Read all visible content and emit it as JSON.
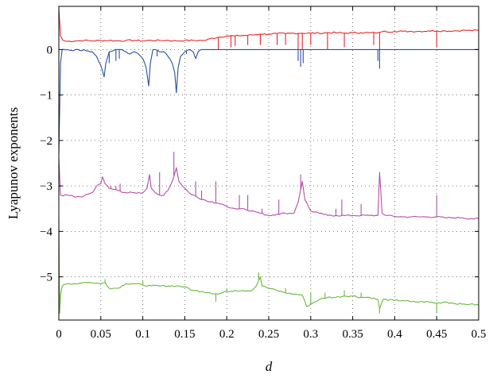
{
  "chart_data": {
    "type": "line",
    "title": "",
    "xlabel": "d",
    "ylabel": "Lyapunov exponents",
    "xlim": [
      0,
      0.5
    ],
    "ylim": [
      -5.95,
      0.95
    ],
    "grid": "dotted",
    "x_ticks": [
      0,
      0.05,
      0.1,
      0.15,
      0.2,
      0.25,
      0.3,
      0.35,
      0.4,
      0.45,
      0.5
    ],
    "x_tick_labels": [
      "0",
      "0.05",
      "0.1",
      "0.15",
      "0.2",
      "0.25",
      "0.3",
      "0.35",
      "0.4",
      "0.45",
      "0.5"
    ],
    "y_ticks": [
      -5,
      -4,
      -3,
      -2,
      -1,
      0
    ],
    "y_tick_labels": [
      "−5",
      "−4",
      "−3",
      "−2",
      "−1",
      "0"
    ],
    "series": [
      {
        "color": "#e8262a",
        "points": [
          [
            0,
            0.9
          ],
          [
            0.002,
            0.3
          ],
          [
            0.005,
            0.2
          ],
          [
            0.01,
            0.18
          ],
          [
            0.02,
            0.19
          ],
          [
            0.03,
            0.2
          ],
          [
            0.04,
            0.19
          ],
          [
            0.05,
            0.2
          ],
          [
            0.06,
            0.2
          ],
          [
            0.07,
            0.19
          ],
          [
            0.08,
            0.2
          ],
          [
            0.09,
            0.2
          ],
          [
            0.1,
            0.19
          ],
          [
            0.11,
            0.2
          ],
          [
            0.12,
            0.2
          ],
          [
            0.13,
            0.2
          ],
          [
            0.14,
            0.19
          ],
          [
            0.15,
            0.2
          ],
          [
            0.16,
            0.2
          ],
          [
            0.17,
            0.2
          ],
          [
            0.175,
            0.2
          ],
          [
            0.18,
            0.24
          ],
          [
            0.19,
            0.27
          ],
          [
            0.2,
            0.3
          ],
          [
            0.21,
            0.3
          ],
          [
            0.22,
            0.31
          ],
          [
            0.23,
            0.32
          ],
          [
            0.24,
            0.34
          ],
          [
            0.25,
            0.34
          ],
          [
            0.26,
            0.35
          ],
          [
            0.27,
            0.35
          ],
          [
            0.28,
            0.36
          ],
          [
            0.29,
            0.36
          ],
          [
            0.3,
            0.36
          ],
          [
            0.31,
            0.36
          ],
          [
            0.32,
            0.37
          ],
          [
            0.33,
            0.37
          ],
          [
            0.34,
            0.36
          ],
          [
            0.35,
            0.37
          ],
          [
            0.36,
            0.37
          ],
          [
            0.37,
            0.37
          ],
          [
            0.38,
            0.37
          ],
          [
            0.383,
            0.38
          ],
          [
            0.386,
            0.4
          ],
          [
            0.39,
            0.39
          ],
          [
            0.4,
            0.4
          ],
          [
            0.41,
            0.4
          ],
          [
            0.42,
            0.4
          ],
          [
            0.43,
            0.4
          ],
          [
            0.44,
            0.41
          ],
          [
            0.45,
            0.41
          ],
          [
            0.46,
            0.41
          ],
          [
            0.47,
            0.41
          ],
          [
            0.48,
            0.42
          ],
          [
            0.49,
            0.42
          ],
          [
            0.5,
            0.42
          ]
        ],
        "dips": [
          [
            0.19,
            0.0
          ],
          [
            0.205,
            0.05
          ],
          [
            0.21,
            0.08
          ],
          [
            0.225,
            0.1
          ],
          [
            0.24,
            0.1
          ],
          [
            0.26,
            0.1
          ],
          [
            0.27,
            0.1
          ],
          [
            0.285,
            0.0
          ],
          [
            0.29,
            0.0
          ],
          [
            0.3,
            0.1
          ],
          [
            0.32,
            0.0
          ],
          [
            0.34,
            0.05
          ],
          [
            0.375,
            0.1
          ],
          [
            0.382,
            0.0
          ],
          [
            0.45,
            0.05
          ]
        ]
      },
      {
        "color": "#2b4fa3",
        "points": [
          [
            0,
            -2.3
          ],
          [
            0.002,
            -0.3
          ],
          [
            0.004,
            0.0
          ],
          [
            0.01,
            0.0
          ],
          [
            0.015,
            -0.02
          ],
          [
            0.02,
            0.0
          ],
          [
            0.025,
            -0.02
          ],
          [
            0.03,
            0.0
          ],
          [
            0.035,
            -0.03
          ],
          [
            0.04,
            -0.05
          ],
          [
            0.045,
            -0.15
          ],
          [
            0.05,
            -0.35
          ],
          [
            0.054,
            -0.6
          ],
          [
            0.056,
            -0.3
          ],
          [
            0.06,
            -0.05
          ],
          [
            0.07,
            0.0
          ],
          [
            0.075,
            0.0
          ],
          [
            0.08,
            -0.05
          ],
          [
            0.085,
            -0.1
          ],
          [
            0.09,
            -0.05
          ],
          [
            0.095,
            -0.1
          ],
          [
            0.1,
            -0.2
          ],
          [
            0.104,
            -0.4
          ],
          [
            0.107,
            -0.8
          ],
          [
            0.109,
            -0.3
          ],
          [
            0.112,
            0.0
          ],
          [
            0.115,
            0.0
          ],
          [
            0.12,
            -0.05
          ],
          [
            0.125,
            -0.05
          ],
          [
            0.13,
            -0.15
          ],
          [
            0.135,
            -0.3
          ],
          [
            0.138,
            -0.5
          ],
          [
            0.14,
            -0.95
          ],
          [
            0.142,
            -0.4
          ],
          [
            0.145,
            -0.15
          ],
          [
            0.15,
            -0.05
          ],
          [
            0.155,
            0.0
          ],
          [
            0.16,
            -0.05
          ],
          [
            0.163,
            -0.2
          ],
          [
            0.166,
            -0.05
          ],
          [
            0.17,
            0.0
          ],
          [
            0.5,
            0.0
          ]
        ],
        "dips": [
          [
            0.06,
            -0.3
          ],
          [
            0.068,
            -0.25
          ],
          [
            0.072,
            -0.2
          ],
          [
            0.117,
            -0.15
          ],
          [
            0.152,
            -0.1
          ],
          [
            0.285,
            -0.25
          ],
          [
            0.288,
            -0.38
          ],
          [
            0.291,
            -0.3
          ],
          [
            0.38,
            -0.25
          ],
          [
            0.382,
            -0.42
          ]
        ]
      },
      {
        "color": "#b44fa9",
        "points": [
          [
            0,
            -2.4
          ],
          [
            0.002,
            -3.2
          ],
          [
            0.005,
            -3.22
          ],
          [
            0.01,
            -3.2
          ],
          [
            0.02,
            -3.25
          ],
          [
            0.03,
            -3.22
          ],
          [
            0.04,
            -3.15
          ],
          [
            0.045,
            -3.0
          ],
          [
            0.05,
            -2.95
          ],
          [
            0.052,
            -2.8
          ],
          [
            0.055,
            -2.95
          ],
          [
            0.06,
            -3.05
          ],
          [
            0.07,
            -3.1
          ],
          [
            0.08,
            -3.15
          ],
          [
            0.09,
            -3.15
          ],
          [
            0.1,
            -3.15
          ],
          [
            0.105,
            -3.05
          ],
          [
            0.108,
            -2.75
          ],
          [
            0.11,
            -3.05
          ],
          [
            0.115,
            -3.15
          ],
          [
            0.12,
            -3.2
          ],
          [
            0.125,
            -3.2
          ],
          [
            0.13,
            -3.1
          ],
          [
            0.135,
            -2.9
          ],
          [
            0.14,
            -2.6
          ],
          [
            0.143,
            -2.9
          ],
          [
            0.15,
            -3.05
          ],
          [
            0.155,
            -3.15
          ],
          [
            0.16,
            -3.2
          ],
          [
            0.165,
            -3.25
          ],
          [
            0.17,
            -3.3
          ],
          [
            0.18,
            -3.35
          ],
          [
            0.19,
            -3.38
          ],
          [
            0.2,
            -3.45
          ],
          [
            0.21,
            -3.5
          ],
          [
            0.22,
            -3.5
          ],
          [
            0.23,
            -3.55
          ],
          [
            0.24,
            -3.6
          ],
          [
            0.25,
            -3.65
          ],
          [
            0.26,
            -3.62
          ],
          [
            0.27,
            -3.6
          ],
          [
            0.28,
            -3.6
          ],
          [
            0.285,
            -3.35
          ],
          [
            0.29,
            -2.9
          ],
          [
            0.293,
            -3.3
          ],
          [
            0.3,
            -3.55
          ],
          [
            0.31,
            -3.6
          ],
          [
            0.32,
            -3.65
          ],
          [
            0.33,
            -3.65
          ],
          [
            0.34,
            -3.65
          ],
          [
            0.35,
            -3.65
          ],
          [
            0.36,
            -3.65
          ],
          [
            0.37,
            -3.65
          ],
          [
            0.38,
            -3.65
          ],
          [
            0.382,
            -2.7
          ],
          [
            0.385,
            -3.6
          ],
          [
            0.39,
            -3.65
          ],
          [
            0.4,
            -3.67
          ],
          [
            0.41,
            -3.68
          ],
          [
            0.42,
            -3.68
          ],
          [
            0.43,
            -3.68
          ],
          [
            0.44,
            -3.68
          ],
          [
            0.45,
            -3.68
          ],
          [
            0.46,
            -3.7
          ],
          [
            0.47,
            -3.7
          ],
          [
            0.48,
            -3.7
          ],
          [
            0.49,
            -3.72
          ],
          [
            0.5,
            -3.72
          ]
        ],
        "spikes": [
          [
            0.058,
            -3.0
          ],
          [
            0.062,
            -3.0
          ],
          [
            0.068,
            -3.0
          ],
          [
            0.073,
            -2.95
          ],
          [
            0.12,
            -2.7
          ],
          [
            0.137,
            -2.25
          ],
          [
            0.163,
            -2.9
          ],
          [
            0.17,
            -3.1
          ],
          [
            0.187,
            -2.9
          ],
          [
            0.215,
            -3.2
          ],
          [
            0.225,
            -3.2
          ],
          [
            0.242,
            -3.5
          ],
          [
            0.262,
            -3.3
          ],
          [
            0.288,
            -2.75
          ],
          [
            0.33,
            -3.5
          ],
          [
            0.337,
            -3.3
          ],
          [
            0.36,
            -3.4
          ],
          [
            0.382,
            -2.7
          ],
          [
            0.45,
            -3.2
          ]
        ]
      },
      {
        "color": "#67b83f",
        "points": [
          [
            0,
            -3.7
          ],
          [
            0.001,
            -5.8
          ],
          [
            0.002,
            -5.4
          ],
          [
            0.004,
            -5.2
          ],
          [
            0.01,
            -5.15
          ],
          [
            0.02,
            -5.15
          ],
          [
            0.03,
            -5.12
          ],
          [
            0.04,
            -5.13
          ],
          [
            0.05,
            -5.15
          ],
          [
            0.055,
            -5.12
          ],
          [
            0.06,
            -5.25
          ],
          [
            0.07,
            -5.25
          ],
          [
            0.08,
            -5.15
          ],
          [
            0.09,
            -5.15
          ],
          [
            0.1,
            -5.18
          ],
          [
            0.11,
            -5.2
          ],
          [
            0.12,
            -5.2
          ],
          [
            0.13,
            -5.2
          ],
          [
            0.14,
            -5.2
          ],
          [
            0.15,
            -5.22
          ],
          [
            0.16,
            -5.3
          ],
          [
            0.17,
            -5.32
          ],
          [
            0.18,
            -5.35
          ],
          [
            0.19,
            -5.38
          ],
          [
            0.2,
            -5.32
          ],
          [
            0.21,
            -5.3
          ],
          [
            0.22,
            -5.3
          ],
          [
            0.23,
            -5.3
          ],
          [
            0.235,
            -5.2
          ],
          [
            0.24,
            -5.0
          ],
          [
            0.242,
            -5.2
          ],
          [
            0.25,
            -5.25
          ],
          [
            0.26,
            -5.3
          ],
          [
            0.27,
            -5.35
          ],
          [
            0.28,
            -5.38
          ],
          [
            0.29,
            -5.4
          ],
          [
            0.295,
            -5.65
          ],
          [
            0.3,
            -5.6
          ],
          [
            0.31,
            -5.5
          ],
          [
            0.32,
            -5.45
          ],
          [
            0.33,
            -5.45
          ],
          [
            0.34,
            -5.42
          ],
          [
            0.35,
            -5.42
          ],
          [
            0.36,
            -5.45
          ],
          [
            0.37,
            -5.45
          ],
          [
            0.38,
            -5.5
          ],
          [
            0.382,
            -5.7
          ],
          [
            0.386,
            -5.5
          ],
          [
            0.39,
            -5.5
          ],
          [
            0.4,
            -5.52
          ],
          [
            0.41,
            -5.52
          ],
          [
            0.42,
            -5.55
          ],
          [
            0.43,
            -5.55
          ],
          [
            0.44,
            -5.55
          ],
          [
            0.45,
            -5.58
          ],
          [
            0.46,
            -5.55
          ],
          [
            0.47,
            -5.58
          ],
          [
            0.48,
            -5.6
          ],
          [
            0.49,
            -5.6
          ],
          [
            0.5,
            -5.62
          ]
        ],
        "spikes": [
          [
            0.055,
            -5.05
          ],
          [
            0.1,
            -5.08
          ],
          [
            0.187,
            -5.55
          ],
          [
            0.2,
            -5.25
          ],
          [
            0.238,
            -4.9
          ],
          [
            0.27,
            -5.25
          ],
          [
            0.3,
            -5.35
          ],
          [
            0.317,
            -5.35
          ],
          [
            0.34,
            -5.3
          ],
          [
            0.36,
            -5.35
          ],
          [
            0.382,
            -5.8
          ],
          [
            0.45,
            -5.8
          ]
        ]
      }
    ]
  }
}
